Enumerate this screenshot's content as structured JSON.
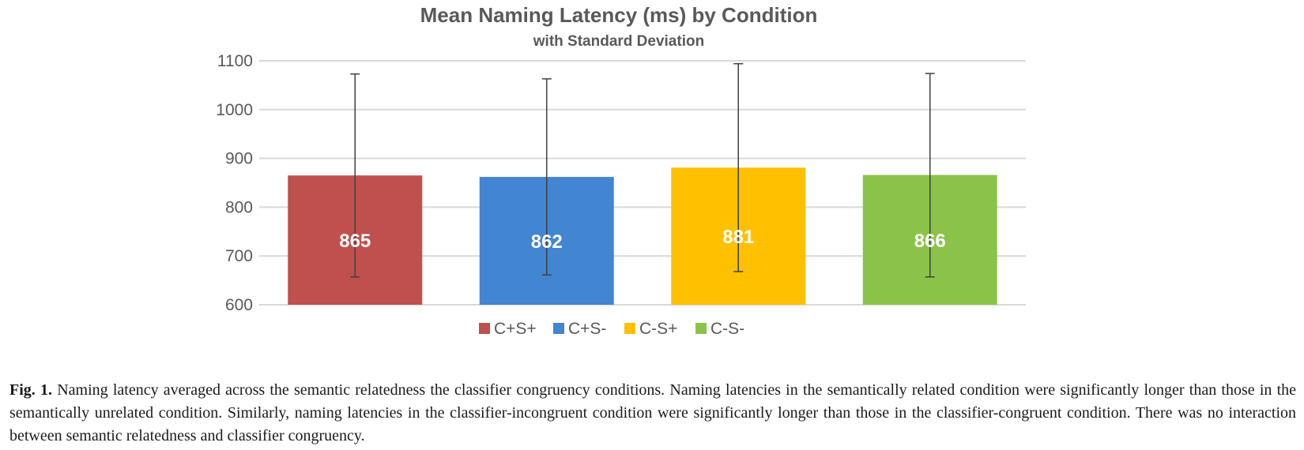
{
  "chart_data": {
    "type": "bar",
    "title": "Mean Naming Latency (ms) by Condition",
    "subtitle": "with Standard Deviation",
    "categories": [
      "C+S+",
      "C+S-",
      "C-S+",
      "C-S-"
    ],
    "values": [
      865,
      862,
      881,
      866
    ],
    "error_bars": [
      {
        "low": 657,
        "high": 1073
      },
      {
        "low": 661,
        "high": 1063
      },
      {
        "low": 668,
        "high": 1094
      },
      {
        "low": 657,
        "high": 1074
      }
    ],
    "colors": [
      "#c0504d",
      "#4285d0",
      "#ffc000",
      "#8bc34a"
    ],
    "ylim": [
      600,
      1100
    ],
    "yticks": [
      600,
      700,
      800,
      900,
      1000,
      1100
    ],
    "grid": true,
    "legend_position": "bottom"
  },
  "caption": {
    "label": "Fig. 1.",
    "text": "Naming latency averaged across the semantic relatedness the classifier congruency conditions. Naming latencies in the semantically related condition were significantly longer than those in the semantically unrelated condition. Similarly, naming latencies in the classifier-incongruent condition were significantly longer than those in the classifier-congruent condition. There was no interaction between semantic relatedness and classifier congruency."
  }
}
